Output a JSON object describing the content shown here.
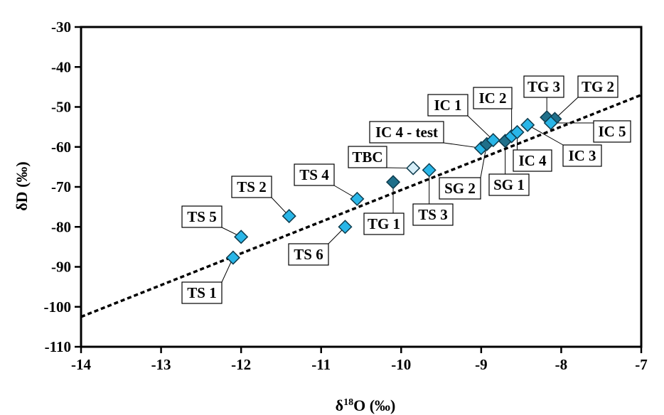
{
  "chart_data": {
    "type": "scatter",
    "title": "",
    "xlabel": {
      "prefix": "δ",
      "sup": "18",
      "suffix": "O (‰)"
    },
    "ylabel": "δD (‰)",
    "xlim": [
      -14,
      -7
    ],
    "ylim": [
      -110,
      -30
    ],
    "x_ticks": [
      "-14",
      "-13",
      "-12",
      "-11",
      "-10",
      "-9",
      "-8",
      "-7"
    ],
    "y_ticks": [
      "-30",
      "-40",
      "-50",
      "-60",
      "-70",
      "-80",
      "-90",
      "-100",
      "-110"
    ],
    "grid": false,
    "legend": "none",
    "colors": {
      "light_blue": "#29b6e8",
      "dark_teal": "#1f6f8a",
      "pale": "#d6eef8",
      "line": "#000000"
    },
    "trend_line": {
      "style": "dashed",
      "from": [
        -14,
        -102.5
      ],
      "to": [
        -7,
        -47
      ]
    },
    "points": [
      {
        "label": "TS 1",
        "x": -12.1,
        "y": -87.7,
        "color": "light_blue"
      },
      {
        "label": "TS 5",
        "x": -12.0,
        "y": -82.5,
        "color": "light_blue"
      },
      {
        "label": "TS 2",
        "x": -11.4,
        "y": -77.3,
        "color": "light_blue"
      },
      {
        "label": "TS 6",
        "x": -10.7,
        "y": -80.0,
        "color": "light_blue"
      },
      {
        "label": "TS 4",
        "x": -10.55,
        "y": -73.0,
        "color": "light_blue"
      },
      {
        "label": "TG 1",
        "x": -10.1,
        "y": -68.8,
        "color": "dark_teal"
      },
      {
        "label": "TBC",
        "x": -9.85,
        "y": -65.3,
        "color": "pale"
      },
      {
        "label": "TS 3",
        "x": -9.65,
        "y": -65.8,
        "color": "light_blue"
      },
      {
        "label": "IC 4 - test",
        "x": -9.0,
        "y": -60.3,
        "color": "light_blue"
      },
      {
        "label": "SG 2",
        "x": -8.93,
        "y": -59.3,
        "color": "dark_teal"
      },
      {
        "label": "IC 1",
        "x": -8.85,
        "y": -58.3,
        "color": "light_blue"
      },
      {
        "label": "SG 1",
        "x": -8.7,
        "y": -58.5,
        "color": "dark_teal"
      },
      {
        "label": "IC 2",
        "x": -8.62,
        "y": -57.3,
        "color": "light_blue"
      },
      {
        "label": "IC 4",
        "x": -8.55,
        "y": -56.3,
        "color": "light_blue"
      },
      {
        "label": "IC 3",
        "x": -8.42,
        "y": -54.5,
        "color": "light_blue"
      },
      {
        "label": "TG 3",
        "x": -8.18,
        "y": -52.6,
        "color": "dark_teal"
      },
      {
        "label": "TG 2",
        "x": -8.08,
        "y": -53.0,
        "color": "dark_teal"
      },
      {
        "label": "IC 5",
        "x": -8.13,
        "y": -54.0,
        "color": "light_blue"
      }
    ]
  }
}
